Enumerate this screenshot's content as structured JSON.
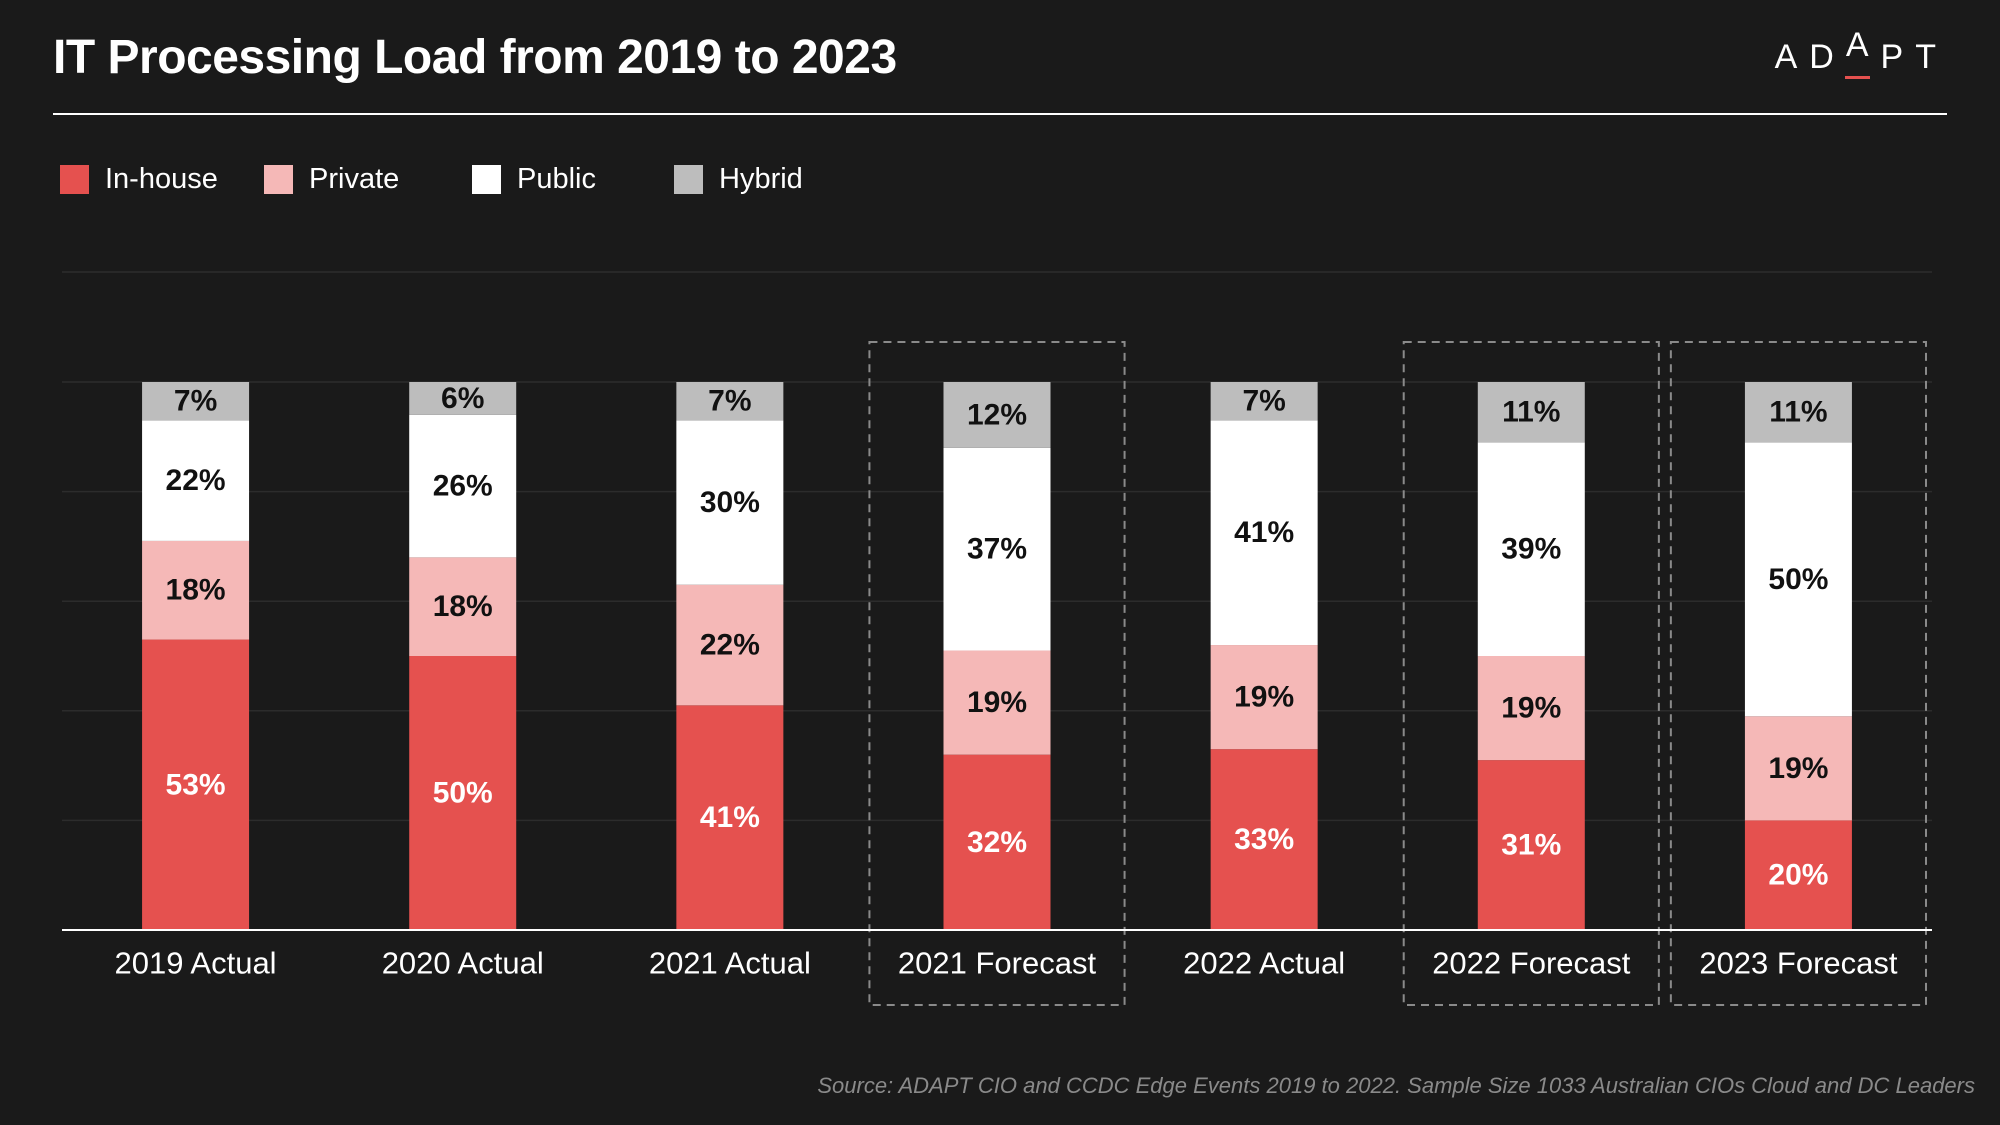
{
  "header": {
    "title": "IT Processing Load from 2019 to 2023",
    "logo": "ADAPT"
  },
  "legend": [
    {
      "label": "In-house",
      "color": "#e5514f"
    },
    {
      "label": "Private",
      "color": "#f5b8b7"
    },
    {
      "label": "Public",
      "color": "#ffffff"
    },
    {
      "label": "Hybrid",
      "color": "#bdbdbd"
    }
  ],
  "chart_data": {
    "type": "bar",
    "stacked": true,
    "categories": [
      "2019 Actual",
      "2020 Actual",
      "2021 Actual",
      "2021 Forecast",
      "2022 Actual",
      "2022 Forecast",
      "2023 Forecast"
    ],
    "highlighted_categories": [
      "2021 Forecast",
      "2022 Forecast",
      "2023 Forecast"
    ],
    "series": [
      {
        "name": "In-house",
        "color": "#e5514f",
        "values": [
          53,
          50,
          41,
          32,
          33,
          31,
          20
        ]
      },
      {
        "name": "Private",
        "color": "#f5b8b7",
        "values": [
          18,
          18,
          22,
          19,
          19,
          19,
          19
        ]
      },
      {
        "name": "Public",
        "color": "#ffffff",
        "values": [
          22,
          26,
          30,
          37,
          41,
          39,
          50
        ]
      },
      {
        "name": "Hybrid",
        "color": "#bdbdbd",
        "values": [
          7,
          6,
          7,
          12,
          7,
          11,
          11
        ]
      }
    ],
    "ylim": [
      0,
      100
    ],
    "value_suffix": "%",
    "grid": true,
    "legend_position": "top-left"
  },
  "source": "Source: ADAPT CIO and CCDC Edge Events 2019 to 2022. Sample Size 1033 Australian CIOs Cloud and DC Leaders"
}
